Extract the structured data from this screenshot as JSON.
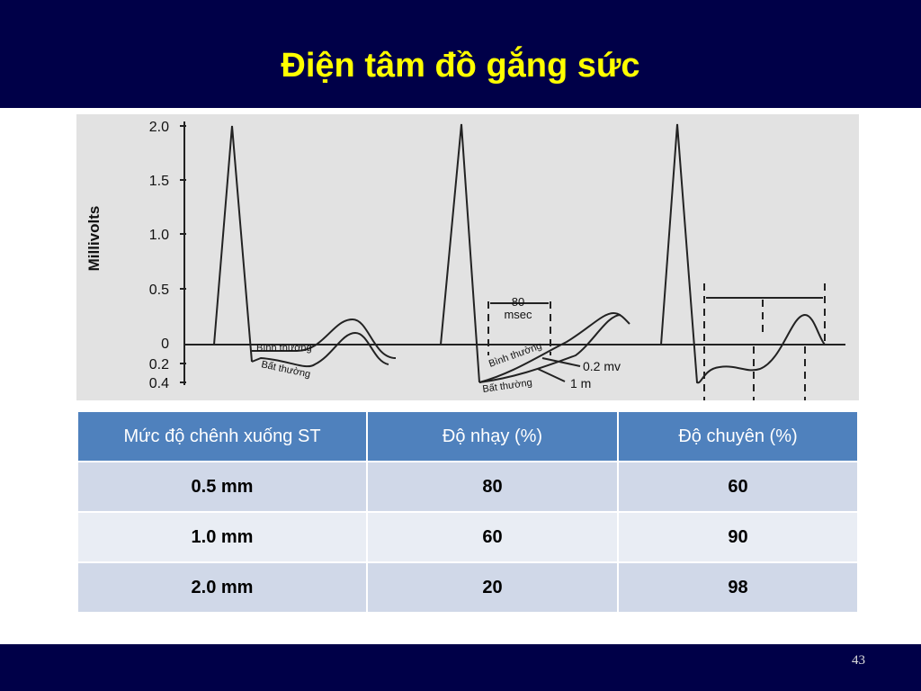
{
  "header": {
    "title": "Điện tâm đồ gắng sức"
  },
  "figure": {
    "y_axis_label": "Millivolts",
    "ticks": [
      "2.0",
      "1.5",
      "1.0",
      "0.5",
      "0",
      "0.2",
      "0.4"
    ],
    "annotations": {
      "normal_1": "Bình thường",
      "abnormal_1": "Bất thường",
      "interval": "80",
      "interval_unit": "msec",
      "normal_2": "Bình thường",
      "abnormal_2": "Bất thường",
      "depression": "0.2 mv",
      "duration": "1 m"
    }
  },
  "table": {
    "header": [
      "Mức độ chênh xuống ST",
      "Độ nhạy (%)",
      "Độ chuyên (%)"
    ],
    "rows": [
      [
        "0.5 mm",
        80,
        60
      ],
      [
        "1.0 mm",
        60,
        90
      ],
      [
        "2.0 mm",
        20,
        98
      ]
    ]
  },
  "footer": {
    "page": 43
  }
}
